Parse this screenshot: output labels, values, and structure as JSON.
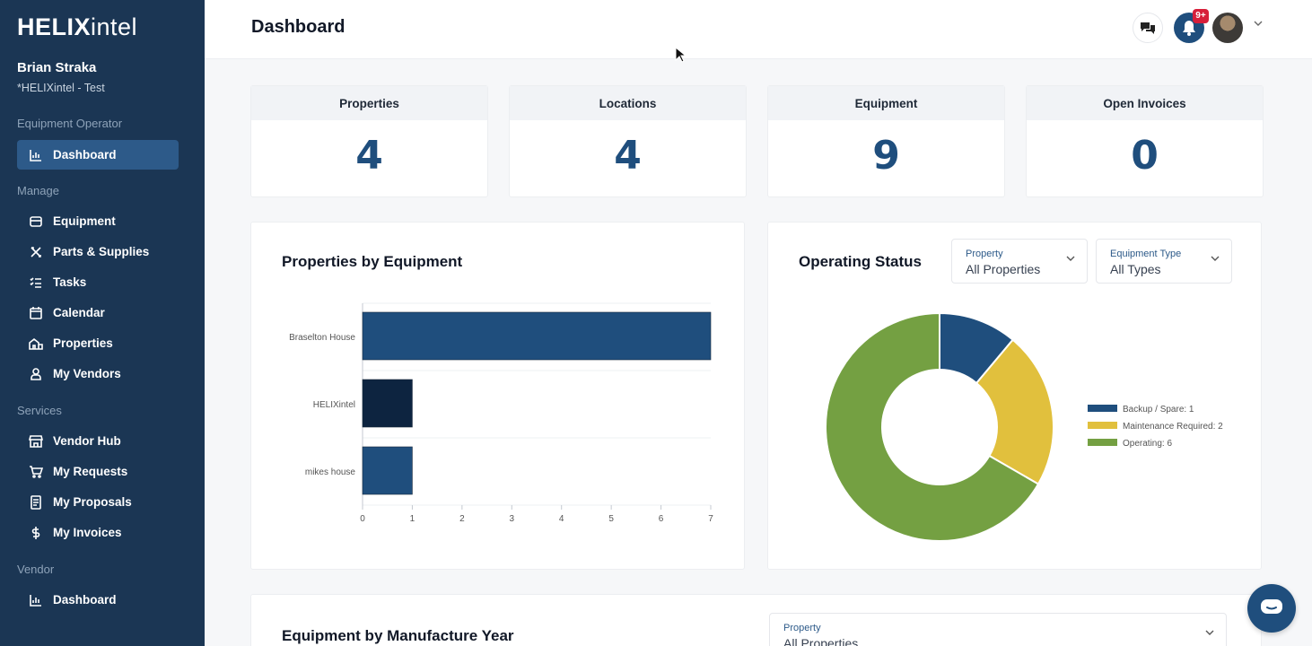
{
  "brand": {
    "bold": "HELIX",
    "light": "intel"
  },
  "user": {
    "name": "Brian Straka",
    "org": "*HELIXintel - Test"
  },
  "sidebar": {
    "sections": [
      {
        "label": "Equipment Operator"
      },
      {
        "label": "Manage"
      },
      {
        "label": "Services"
      },
      {
        "label": "Vendor"
      }
    ],
    "items": [
      {
        "label": "Dashboard",
        "icon": "bar-chart-icon"
      },
      {
        "label": "Equipment",
        "icon": "box-icon"
      },
      {
        "label": "Parts & Supplies",
        "icon": "tools-icon"
      },
      {
        "label": "Tasks",
        "icon": "checklist-icon"
      },
      {
        "label": "Calendar",
        "icon": "calendar-icon"
      },
      {
        "label": "Properties",
        "icon": "buildings-icon"
      },
      {
        "label": "My Vendors",
        "icon": "person-icon"
      },
      {
        "label": "Vendor Hub",
        "icon": "store-icon"
      },
      {
        "label": "My Requests",
        "icon": "cart-icon"
      },
      {
        "label": "My Proposals",
        "icon": "document-icon"
      },
      {
        "label": "My Invoices",
        "icon": "dollar-icon"
      },
      {
        "label": "Dashboard",
        "icon": "bar-chart-icon"
      }
    ]
  },
  "header": {
    "title": "Dashboard",
    "notification_count": "9+"
  },
  "stats": [
    {
      "label": "Properties",
      "value": "4"
    },
    {
      "label": "Locations",
      "value": "4"
    },
    {
      "label": "Equipment",
      "value": "9"
    },
    {
      "label": "Open Invoices",
      "value": "0"
    }
  ],
  "properties_panel": {
    "title": "Properties by Equipment"
  },
  "status_panel": {
    "title": "Operating Status",
    "property_filter": {
      "label": "Property",
      "value": "All Properties"
    },
    "type_filter": {
      "label": "Equipment Type",
      "value": "All Types"
    }
  },
  "manufacture_panel": {
    "title": "Equipment by Manufacture Year",
    "property_filter": {
      "label": "Property",
      "value": "All Properties"
    }
  },
  "colors": {
    "accent": "#1f4e7d",
    "sidebar": "#1b3654",
    "dark_bar": "#0d2440",
    "yellow": "#e1c03d",
    "green": "#74a042"
  },
  "chart_data": [
    {
      "type": "bar",
      "orientation": "horizontal",
      "categories": [
        "Braselton House",
        "HELIXintel",
        "mikes house"
      ],
      "values": [
        7,
        1,
        1
      ],
      "colors": [
        "#1f4e7d",
        "#0d2440",
        "#1f4e7d"
      ],
      "xlim": [
        0,
        7
      ],
      "ticks": [
        "0",
        "1",
        "2",
        "3",
        "4",
        "5",
        "6",
        "7"
      ]
    },
    {
      "type": "pie",
      "donut": true,
      "labels": [
        "Backup / Spare",
        "Maintenance Required",
        "Operating"
      ],
      "values": [
        1,
        2,
        6
      ],
      "legend": [
        "Backup / Spare: 1",
        "Maintenance Required: 2",
        "Operating: 6"
      ],
      "colors": [
        "#1f4e7d",
        "#e1c03d",
        "#74a042"
      ],
      "legend_position": "right"
    }
  ]
}
